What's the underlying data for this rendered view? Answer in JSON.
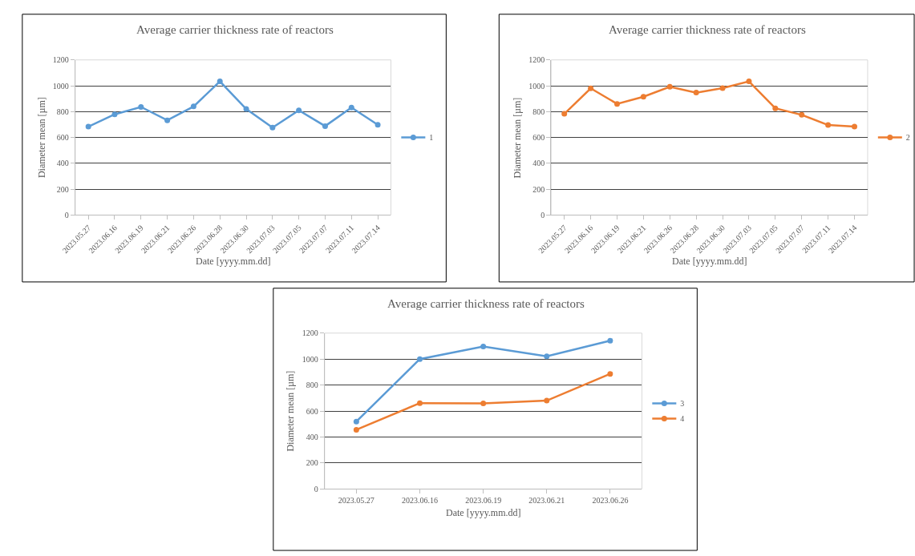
{
  "chart_data": [
    {
      "type": "line",
      "title": "Average carrier thickness rate of reactors",
      "xlabel": "Date [yyyy.mm.dd]",
      "ylabel": "Diameter mean [µm]",
      "categories": [
        "2023.05.27",
        "2023.06.16",
        "2023.06.19",
        "2023.06.21",
        "2023.06.26",
        "2023.06.28",
        "2023.06.30",
        "2023.07.03",
        "2023.07.05",
        "2023.07.07",
        "2023.07.11",
        "2023.07.14"
      ],
      "series": [
        {
          "name": "1",
          "color": "#5b9bd5",
          "values": [
            684,
            779,
            836,
            733,
            840,
            1034,
            820,
            676,
            810,
            688,
            832,
            698
          ]
        }
      ],
      "ylim": [
        0,
        1200
      ],
      "yticks": [
        0,
        200,
        400,
        600,
        800,
        1000,
        1200
      ],
      "grid": "y",
      "legend": "right",
      "marker": "circle",
      "line_style": "solid"
    },
    {
      "type": "line",
      "title": "Average carrier thickness rate of reactors",
      "xlabel": "Date [yyyy.mm.dd]",
      "ylabel": "Diameter mean [µm]",
      "categories": [
        "2023.05.27",
        "2023.06.16",
        "2023.06.19",
        "2023.06.21",
        "2023.06.26",
        "2023.06.28",
        "2023.06.30",
        "2023.07.03",
        "2023.07.05",
        "2023.07.07",
        "2023.07.11",
        "2023.07.14"
      ],
      "series": [
        {
          "name": "2",
          "color": "#ed7d31",
          "values": [
            783,
            980,
            860,
            915,
            992,
            947,
            982,
            1034,
            826,
            775,
            696,
            684
          ]
        }
      ],
      "ylim": [
        0,
        1200
      ],
      "yticks": [
        0,
        200,
        400,
        600,
        800,
        1000,
        1200
      ],
      "grid": "y",
      "legend": "right",
      "marker": "circle",
      "line_style": "solid"
    },
    {
      "type": "line",
      "title": "Average carrier thickness rate of reactors",
      "xlabel": "Date [yyyy.mm.dd]",
      "ylabel": "Diameter mean [µm]",
      "categories": [
        "2023.05.27",
        "2023.06.16",
        "2023.06.19",
        "2023.06.21",
        "2023.06.26"
      ],
      "series": [
        {
          "name": "3",
          "color": "#5b9bd5",
          "values": [
            519,
            1000,
            1097,
            1022,
            1142
          ]
        },
        {
          "name": "4",
          "color": "#ed7d31",
          "values": [
            456,
            661,
            659,
            680,
            886
          ]
        }
      ],
      "ylim": [
        0,
        1200
      ],
      "yticks": [
        0,
        200,
        400,
        600,
        800,
        1000,
        1200
      ],
      "grid": "y",
      "legend": "right",
      "marker": "circle",
      "line_style": "solid"
    }
  ]
}
